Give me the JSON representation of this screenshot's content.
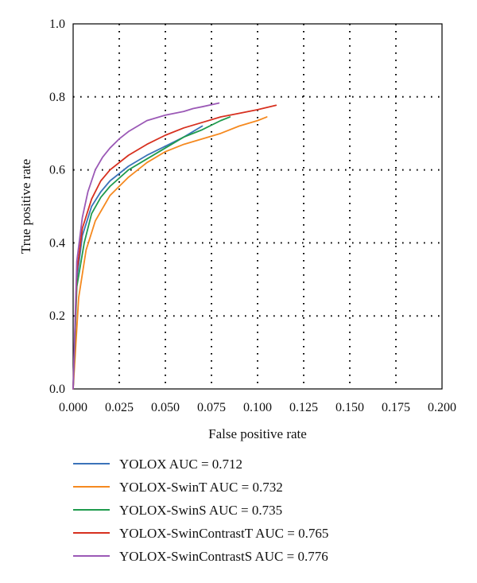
{
  "chart_data": {
    "type": "line",
    "xlabel": "False positive rate",
    "ylabel": "True positive rate",
    "xlim": [
      0,
      0.2
    ],
    "ylim": [
      0,
      1.0
    ],
    "x_ticks": [
      "0.000",
      "0.025",
      "0.050",
      "0.075",
      "0.100",
      "0.125",
      "0.150",
      "0.175",
      "0.200"
    ],
    "y_ticks": [
      "0.0",
      "0.2",
      "0.4",
      "0.6",
      "0.8",
      "1.0"
    ],
    "grid": true,
    "legend_position": "bottom",
    "series": [
      {
        "name": "YOLOX AUC = 0.712",
        "color": "#3b73b9",
        "points": [
          [
            0,
            0
          ],
          [
            0.002,
            0.3
          ],
          [
            0.005,
            0.42
          ],
          [
            0.01,
            0.5
          ],
          [
            0.015,
            0.54
          ],
          [
            0.02,
            0.57
          ],
          [
            0.03,
            0.61
          ],
          [
            0.04,
            0.64
          ],
          [
            0.05,
            0.665
          ],
          [
            0.06,
            0.69
          ],
          [
            0.07,
            0.72
          ]
        ]
      },
      {
        "name": "YOLOX-SwinT AUC = 0.732",
        "color": "#f5891f",
        "points": [
          [
            0,
            0
          ],
          [
            0.003,
            0.25
          ],
          [
            0.007,
            0.38
          ],
          [
            0.012,
            0.46
          ],
          [
            0.02,
            0.53
          ],
          [
            0.03,
            0.58
          ],
          [
            0.04,
            0.62
          ],
          [
            0.05,
            0.65
          ],
          [
            0.06,
            0.67
          ],
          [
            0.07,
            0.685
          ],
          [
            0.08,
            0.7
          ],
          [
            0.09,
            0.72
          ],
          [
            0.1,
            0.735
          ],
          [
            0.105,
            0.745
          ]
        ]
      },
      {
        "name": "YOLOX-SwinS AUC = 0.735",
        "color": "#1f9b4d",
        "points": [
          [
            0,
            0
          ],
          [
            0.002,
            0.28
          ],
          [
            0.006,
            0.4
          ],
          [
            0.01,
            0.48
          ],
          [
            0.015,
            0.525
          ],
          [
            0.02,
            0.555
          ],
          [
            0.03,
            0.6
          ],
          [
            0.04,
            0.63
          ],
          [
            0.05,
            0.66
          ],
          [
            0.06,
            0.69
          ],
          [
            0.07,
            0.71
          ],
          [
            0.08,
            0.735
          ],
          [
            0.085,
            0.745
          ]
        ]
      },
      {
        "name": "YOLOX-SwinContrastT AUC = 0.765",
        "color": "#d7301f",
        "points": [
          [
            0,
            0
          ],
          [
            0.002,
            0.32
          ],
          [
            0.005,
            0.44
          ],
          [
            0.01,
            0.52
          ],
          [
            0.015,
            0.57
          ],
          [
            0.02,
            0.6
          ],
          [
            0.03,
            0.64
          ],
          [
            0.04,
            0.67
          ],
          [
            0.05,
            0.695
          ],
          [
            0.06,
            0.715
          ],
          [
            0.07,
            0.73
          ],
          [
            0.08,
            0.745
          ],
          [
            0.09,
            0.755
          ],
          [
            0.1,
            0.765
          ],
          [
            0.11,
            0.777
          ]
        ]
      },
      {
        "name": "YOLOX-SwinContrastS AUC = 0.776",
        "color": "#9b59b6",
        "points": [
          [
            0,
            0
          ],
          [
            0.002,
            0.35
          ],
          [
            0.005,
            0.47
          ],
          [
            0.008,
            0.54
          ],
          [
            0.012,
            0.6
          ],
          [
            0.016,
            0.635
          ],
          [
            0.02,
            0.66
          ],
          [
            0.025,
            0.685
          ],
          [
            0.03,
            0.705
          ],
          [
            0.035,
            0.72
          ],
          [
            0.04,
            0.735
          ],
          [
            0.05,
            0.75
          ],
          [
            0.06,
            0.76
          ],
          [
            0.065,
            0.768
          ],
          [
            0.07,
            0.773
          ],
          [
            0.079,
            0.783
          ]
        ]
      }
    ]
  }
}
